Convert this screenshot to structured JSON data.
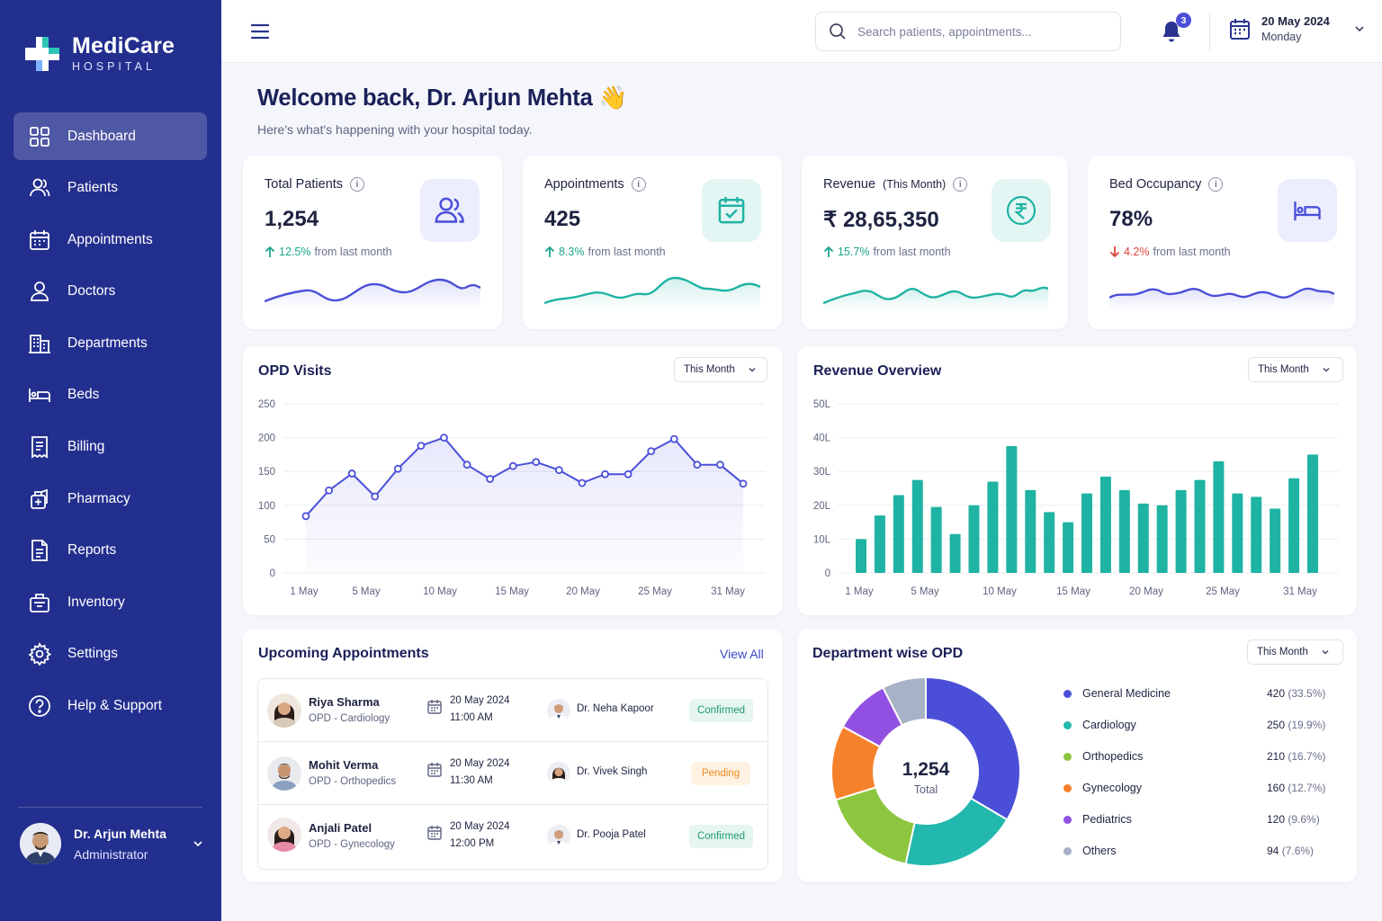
{
  "app": {
    "name": "MediCare",
    "subtitle": "HOSPITAL"
  },
  "sidebar": {
    "items": [
      {
        "label": "Dashboard",
        "icon": "dashboard-icon",
        "active": true
      },
      {
        "label": "Patients",
        "icon": "users-icon"
      },
      {
        "label": "Appointments",
        "icon": "calendar-icon"
      },
      {
        "label": "Doctors",
        "icon": "user-icon"
      },
      {
        "label": "Departments",
        "icon": "building-icon"
      },
      {
        "label": "Beds",
        "icon": "bed-icon"
      },
      {
        "label": "Billing",
        "icon": "receipt-icon"
      },
      {
        "label": "Pharmacy",
        "icon": "pharmacy-icon"
      },
      {
        "label": "Reports",
        "icon": "report-icon"
      },
      {
        "label": "Inventory",
        "icon": "inventory-icon"
      },
      {
        "label": "Settings",
        "icon": "gear-icon"
      },
      {
        "label": "Help & Support",
        "icon": "help-icon"
      }
    ],
    "user": {
      "name": "Dr. Arjun Mehta",
      "role": "Administrator"
    }
  },
  "topbar": {
    "search_placeholder": "Search patients, appointments...",
    "notifications": "3",
    "date": "20 May 2024",
    "day": "Monday"
  },
  "welcome": {
    "title": "Welcome back, Dr. Arjun Mehta 👋",
    "subtitle": "Here's what's happening with your hospital today."
  },
  "stats": [
    {
      "label": "Total Patients",
      "label_suffix": "",
      "value": "1,254",
      "change": "12.5%",
      "direction": "up",
      "note": "from last month",
      "icon": "users-icon",
      "color": "#4b4fd8",
      "bg": "#eceefd"
    },
    {
      "label": "Appointments",
      "label_suffix": "",
      "value": "425",
      "change": "8.3%",
      "direction": "up",
      "note": "from last month",
      "icon": "calendar-check-icon",
      "color": "#1fb3a3",
      "bg": "#e3f6f3"
    },
    {
      "label": "Revenue",
      "label_suffix": "(This Month)",
      "value": "₹ 28,65,350",
      "change": "15.7%",
      "direction": "up",
      "note": "from last month",
      "icon": "rupee-icon",
      "color": "#1fb3a3",
      "bg": "#e3f6f3"
    },
    {
      "label": "Bed Occupancy",
      "label_suffix": "",
      "value": "78%",
      "change": "4.2%",
      "direction": "down",
      "note": "from last month",
      "icon": "bed-icon",
      "color": "#4b4fd8",
      "bg": "#eceefd"
    }
  ],
  "opd": {
    "title": "OPD Visits",
    "filter": "This Month"
  },
  "revenue": {
    "title": "Revenue Overview",
    "filter": "This Month"
  },
  "chart_data": [
    {
      "type": "line",
      "title": "OPD Visits",
      "x_ticks": [
        "1 May",
        "5 May",
        "10 May",
        "15 May",
        "20 May",
        "25 May",
        "31 May"
      ],
      "y_ticks": [
        "250",
        "200",
        "150",
        "100",
        "50",
        "0"
      ],
      "ylim": [
        0,
        250
      ],
      "series": [
        {
          "values": [
            84,
            122,
            147,
            113,
            154,
            188,
            200,
            160,
            139,
            158,
            164,
            152,
            133,
            146,
            146,
            180,
            198,
            160,
            160,
            132
          ],
          "color": "#4b4fd8"
        }
      ],
      "grid": true
    },
    {
      "type": "bar",
      "title": "Revenue Overview",
      "x_ticks": [
        "1 May",
        "5 May",
        "10 May",
        "15 May",
        "20 May",
        "25 May",
        "31 May"
      ],
      "y_ticks": [
        "50L",
        "40L",
        "30L",
        "20L",
        "10L",
        "0"
      ],
      "ylim": [
        0,
        50
      ],
      "series": [
        {
          "values": [
            10,
            17,
            23,
            27.5,
            19.5,
            11.5,
            20,
            27,
            37.5,
            24.5,
            18,
            15,
            23.5,
            28.5,
            24.5,
            20.5,
            20,
            24.5,
            27.5,
            33,
            23.5,
            22.5,
            19,
            28,
            35
          ],
          "color": "#1fb3a3"
        }
      ],
      "grid": true
    },
    {
      "type": "pie",
      "title": "Department wise OPD",
      "center_value": "1,254",
      "center_label": "Total",
      "slices": [
        {
          "label": "General Medicine",
          "value": 420,
          "pct": "(33.5%)",
          "color": "#4b4fd8"
        },
        {
          "label": "Cardiology",
          "value": 250,
          "pct": "(19.9%)",
          "color": "#22b8ad"
        },
        {
          "label": "Orthopedics",
          "value": 210,
          "pct": "(16.7%)",
          "color": "#8cc63f"
        },
        {
          "label": "Gynecology",
          "value": 160,
          "pct": "(12.7%)",
          "color": "#f5822a"
        },
        {
          "label": "Pediatrics",
          "value": 120,
          "pct": "(9.6%)",
          "color": "#9250e2"
        },
        {
          "label": "Others",
          "value": 94,
          "pct": "(7.6%)",
          "color": "#a7b2c6"
        }
      ]
    }
  ],
  "appointments": {
    "title": "Upcoming Appointments",
    "view_all": "View All",
    "rows": [
      {
        "patient": "Riya Sharma",
        "dept": "OPD - Cardiology",
        "date": "20 May 2024",
        "time": "11:00 AM",
        "doctor": "Dr. Neha Kapoor",
        "status": "Confirmed",
        "kind": "ok",
        "gender": "f",
        "doc_gender": "m"
      },
      {
        "patient": "Mohit Verma",
        "dept": "OPD - Orthopedics",
        "date": "20 May 2024",
        "time": "11:30 AM",
        "doctor": "Dr. Vivek Singh",
        "status": "Pending",
        "kind": "pend",
        "gender": "m",
        "doc_gender": "f"
      },
      {
        "patient": "Anjali Patel",
        "dept": "OPD - Gynecology",
        "date": "20 May 2024",
        "time": "12:00 PM",
        "doctor": "Dr. Pooja Patel",
        "status": "Confirmed",
        "kind": "ok",
        "gender": "f",
        "doc_gender": "m"
      }
    ]
  },
  "dept": {
    "title": "Department wise OPD",
    "filter": "This Month"
  }
}
